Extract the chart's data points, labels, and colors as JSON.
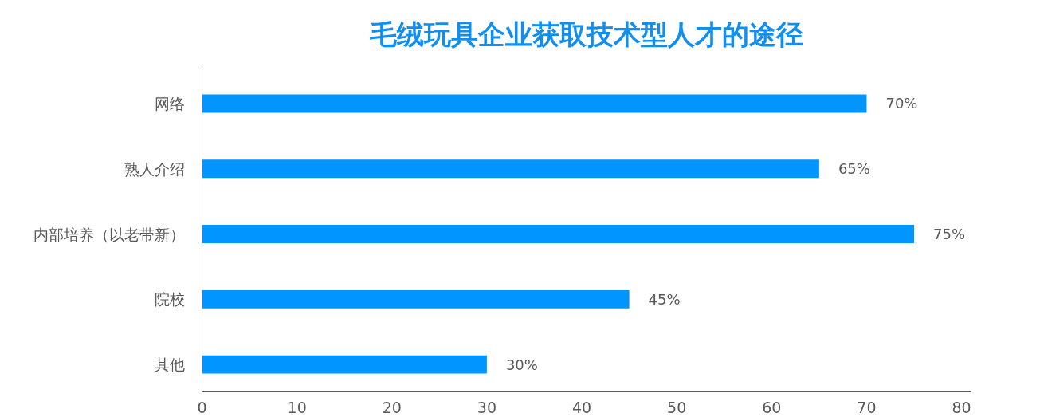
{
  "chart_data": {
    "type": "bar",
    "title": "毛绒玩具企业获取技术型人才的途径",
    "orientation": "horizontal",
    "categories": [
      "网络",
      "熟人介绍",
      "内部培养（以老带新）",
      "院校",
      "其他"
    ],
    "values": [
      70,
      65,
      75,
      45,
      30
    ],
    "value_labels": [
      "70%",
      "65%",
      "75%",
      "45%",
      "30%"
    ],
    "color": "#0095ff",
    "xlim": [
      0,
      81
    ],
    "xticks": [
      0,
      10,
      20,
      30,
      40,
      50,
      60,
      70,
      80
    ],
    "grid": false
  }
}
